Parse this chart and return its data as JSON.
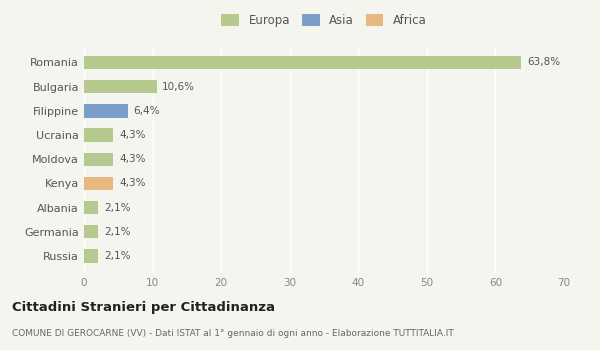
{
  "categories": [
    "Romania",
    "Bulgaria",
    "Filippine",
    "Ucraina",
    "Moldova",
    "Kenya",
    "Albania",
    "Germania",
    "Russia"
  ],
  "values": [
    63.8,
    10.6,
    6.4,
    4.3,
    4.3,
    4.3,
    2.1,
    2.1,
    2.1
  ],
  "labels": [
    "63,8%",
    "10,6%",
    "6,4%",
    "4,3%",
    "4,3%",
    "4,3%",
    "2,1%",
    "2,1%",
    "2,1%"
  ],
  "colors": [
    "#b5c98e",
    "#b5c98e",
    "#7b9dc7",
    "#b5c98e",
    "#b5c98e",
    "#e8b882",
    "#b5c98e",
    "#b5c98e",
    "#b5c98e"
  ],
  "legend": [
    {
      "label": "Europa",
      "color": "#b5c98e"
    },
    {
      "label": "Asia",
      "color": "#7b9dc7"
    },
    {
      "label": "Africa",
      "color": "#e8b882"
    }
  ],
  "xlim": [
    0,
    70
  ],
  "xticks": [
    0,
    10,
    20,
    30,
    40,
    50,
    60,
    70
  ],
  "title": "Cittadini Stranieri per Cittadinanza",
  "subtitle": "COMUNE DI GEROCARNE (VV) - Dati ISTAT al 1° gennaio di ogni anno - Elaborazione TUTTITALIA.IT",
  "bg_color": "#f5f5f0",
  "grid_color": "#ffffff",
  "bar_height": 0.55
}
